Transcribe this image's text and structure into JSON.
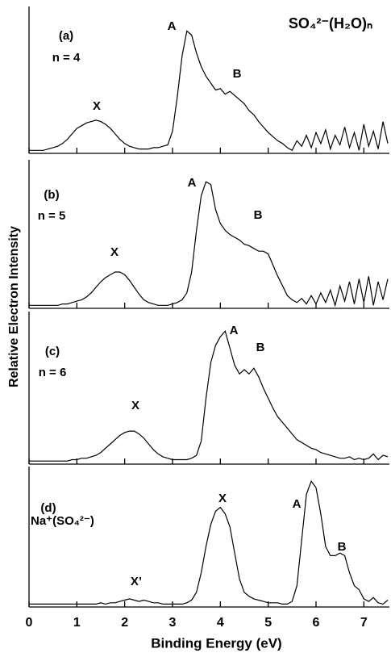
{
  "chart_data": [
    {
      "type": "line",
      "title": "SO₄²⁻(H₂O)ₙ",
      "ylabel": "Relative Electron Intensity",
      "label": "(a)",
      "sublabel": "n = 4",
      "annotations": [
        "X",
        "A",
        "B"
      ],
      "color": "#000000",
      "xlim": [
        0,
        7.5
      ],
      "ylim": [
        0,
        100
      ],
      "x": [
        0,
        0.1,
        0.2,
        0.3,
        0.4,
        0.5,
        0.6,
        0.7,
        0.8,
        0.9,
        1,
        1.1,
        1.2,
        1.3,
        1.4,
        1.5,
        1.6,
        1.7,
        1.8,
        1.9,
        2,
        2.1,
        2.2,
        2.3,
        2.4,
        2.5,
        2.6,
        2.7,
        2.8,
        2.9,
        3,
        3.1,
        3.2,
        3.3,
        3.4,
        3.5,
        3.6,
        3.7,
        3.8,
        3.9,
        4,
        4.1,
        4.2,
        4.3,
        4.4,
        4.5,
        4.6,
        4.7,
        4.8,
        4.9,
        5,
        5.1,
        5.2,
        5.3,
        5.4,
        5.5,
        5.6,
        5.7,
        5.8,
        5.9,
        6,
        6.1,
        6.2,
        6.3,
        6.4,
        6.5,
        6.6,
        6.7,
        6.8,
        6.9,
        7,
        7.1,
        7.2,
        7.3,
        7.4,
        7.5
      ],
      "values": [
        1,
        1,
        1,
        1,
        2,
        3,
        4,
        6,
        9,
        13,
        17,
        19,
        21,
        22,
        23,
        22,
        20,
        17,
        13,
        9,
        6,
        4,
        3,
        2,
        2,
        2,
        3,
        3,
        4,
        5,
        15,
        40,
        70,
        88,
        85,
        72,
        62,
        55,
        50,
        45,
        46,
        42,
        44,
        41,
        38,
        35,
        30,
        27,
        22,
        18,
        14,
        11,
        8,
        6,
        3,
        1,
        8,
        4,
        12,
        3,
        14,
        6,
        16,
        2,
        12,
        5,
        18,
        3,
        14,
        1,
        20,
        4,
        15,
        2,
        22,
        6
      ]
    },
    {
      "type": "line",
      "label": "(b)",
      "sublabel": "n = 5",
      "annotations": [
        "X",
        "A",
        "B"
      ],
      "color": "#000000",
      "xlim": [
        0,
        7.5
      ],
      "ylim": [
        0,
        100
      ],
      "x": [
        0,
        0.1,
        0.2,
        0.3,
        0.4,
        0.5,
        0.6,
        0.7,
        0.8,
        0.9,
        1,
        1.1,
        1.2,
        1.3,
        1.4,
        1.5,
        1.6,
        1.7,
        1.8,
        1.9,
        2,
        2.1,
        2.2,
        2.3,
        2.4,
        2.5,
        2.6,
        2.7,
        2.8,
        2.9,
        3,
        3.1,
        3.2,
        3.3,
        3.4,
        3.5,
        3.6,
        3.7,
        3.8,
        3.9,
        4,
        4.1,
        4.2,
        4.3,
        4.4,
        4.5,
        4.6,
        4.7,
        4.8,
        4.9,
        5,
        5.1,
        5.2,
        5.3,
        5.4,
        5.5,
        5.6,
        5.7,
        5.8,
        5.9,
        6,
        6.1,
        6.2,
        6.3,
        6.4,
        6.5,
        6.6,
        6.7,
        6.8,
        6.9,
        7,
        7.1,
        7.2,
        7.3,
        7.4,
        7.5
      ],
      "values": [
        1,
        1,
        1,
        1,
        1,
        1,
        1,
        2,
        2,
        3,
        4,
        5,
        7,
        10,
        14,
        18,
        21,
        23,
        25,
        25,
        23,
        19,
        14,
        9,
        5,
        3,
        2,
        1,
        1,
        1,
        2,
        3,
        5,
        10,
        25,
        55,
        80,
        90,
        88,
        70,
        60,
        55,
        52,
        50,
        48,
        45,
        44,
        42,
        40,
        40,
        38,
        30,
        22,
        15,
        8,
        5,
        3,
        6,
        2,
        8,
        2,
        10,
        3,
        12,
        1,
        15,
        4,
        18,
        2,
        20,
        3,
        22,
        1,
        18,
        5,
        20
      ]
    },
    {
      "type": "line",
      "label": "(c)",
      "sublabel": "n = 6",
      "annotations": [
        "X",
        "A",
        "B"
      ],
      "color": "#000000",
      "xlim": [
        0,
        7.5
      ],
      "ylim": [
        0,
        100
      ],
      "x": [
        0,
        0.1,
        0.2,
        0.3,
        0.4,
        0.5,
        0.6,
        0.7,
        0.8,
        0.9,
        1,
        1.1,
        1.2,
        1.3,
        1.4,
        1.5,
        1.6,
        1.7,
        1.8,
        1.9,
        2,
        2.1,
        2.2,
        2.3,
        2.4,
        2.5,
        2.6,
        2.7,
        2.8,
        2.9,
        3,
        3.1,
        3.2,
        3.3,
        3.4,
        3.5,
        3.6,
        3.7,
        3.8,
        3.9,
        4,
        4.1,
        4.2,
        4.3,
        4.4,
        4.5,
        4.6,
        4.7,
        4.8,
        4.9,
        5,
        5.1,
        5.2,
        5.3,
        5.4,
        5.5,
        5.6,
        5.7,
        5.8,
        5.9,
        6,
        6.1,
        6.2,
        6.3,
        6.4,
        6.5,
        6.6,
        6.7,
        6.8,
        6.9,
        7,
        7.1,
        7.2,
        7.3,
        7.4,
        7.5
      ],
      "values": [
        1,
        1,
        1,
        1,
        1,
        1,
        1,
        1,
        1,
        2,
        2,
        3,
        3,
        4,
        5,
        7,
        10,
        13,
        16,
        19,
        21,
        22,
        22,
        20,
        17,
        13,
        9,
        6,
        4,
        3,
        2,
        2,
        2,
        2,
        3,
        5,
        15,
        45,
        70,
        82,
        88,
        92,
        80,
        68,
        62,
        65,
        62,
        66,
        60,
        52,
        45,
        38,
        32,
        28,
        24,
        20,
        16,
        14,
        12,
        10,
        9,
        7,
        6,
        5,
        4,
        3,
        3,
        4,
        2,
        3,
        2,
        3,
        6,
        2,
        5,
        4
      ]
    },
    {
      "type": "line",
      "label": "(d)",
      "sublabel": "Na⁺(SO₄²⁻)",
      "annotations": [
        "X’",
        "X",
        "A",
        "B"
      ],
      "color": "#000000",
      "xlim": [
        0,
        7.5
      ],
      "ylim": [
        0,
        100
      ],
      "xlabel": "Binding Energy (eV)",
      "xticks": [
        0,
        1,
        2,
        3,
        4,
        5,
        6,
        7
      ],
      "x": [
        0,
        0.1,
        0.2,
        0.3,
        0.4,
        0.5,
        0.6,
        0.7,
        0.8,
        0.9,
        1,
        1.1,
        1.2,
        1.3,
        1.4,
        1.5,
        1.6,
        1.7,
        1.8,
        1.9,
        2,
        2.1,
        2.2,
        2.3,
        2.4,
        2.5,
        2.6,
        2.7,
        2.8,
        2.9,
        3,
        3.1,
        3.2,
        3.3,
        3.4,
        3.5,
        3.6,
        3.7,
        3.8,
        3.9,
        4,
        4.1,
        4.2,
        4.3,
        4.4,
        4.5,
        4.6,
        4.7,
        4.8,
        4.9,
        5,
        5.1,
        5.2,
        5.3,
        5.4,
        5.5,
        5.6,
        5.7,
        5.8,
        5.9,
        6,
        6.1,
        6.2,
        6.3,
        6.4,
        6.5,
        6.6,
        6.7,
        6.8,
        6.9,
        7,
        7.1,
        7.2,
        7.3,
        7.4,
        7.5
      ],
      "values": [
        1,
        1,
        1,
        1,
        1,
        1,
        1,
        1,
        1,
        1,
        1,
        1,
        1,
        1,
        1,
        2,
        1,
        2,
        2,
        3,
        4,
        5,
        4,
        3,
        4,
        3,
        2,
        2,
        1,
        1,
        1,
        1,
        1,
        2,
        4,
        10,
        25,
        45,
        62,
        72,
        75,
        70,
        60,
        40,
        20,
        10,
        7,
        5,
        4,
        3,
        2,
        2,
        2,
        1,
        1,
        3,
        15,
        50,
        85,
        95,
        90,
        70,
        45,
        38,
        38,
        40,
        38,
        25,
        15,
        12,
        5,
        3,
        6,
        2,
        1,
        4
      ]
    }
  ]
}
